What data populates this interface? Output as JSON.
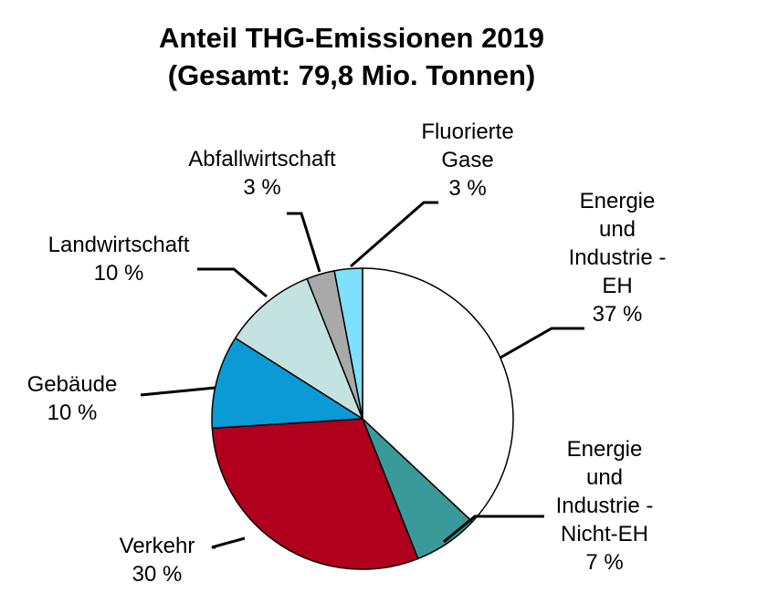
{
  "chart_data": {
    "type": "pie",
    "title": "Anteil THG-Emissionen 2019",
    "subtitle": "(Gesamt: 79,8 Mio. Tonnen)",
    "unit": "%",
    "slices": [
      {
        "name": "Energie und Industrie - EH",
        "label_lines": [
          "Energie",
          "und",
          "Industrie -",
          "EH"
        ],
        "value_text": "37 %",
        "value": 37,
        "color": "#ffffff"
      },
      {
        "name": "Energie und Industrie - Nicht-EH",
        "label_lines": [
          "Energie",
          "und",
          "Industrie -",
          "Nicht-EH"
        ],
        "value_text": "7 %",
        "value": 7,
        "color": "#3a9a9a"
      },
      {
        "name": "Verkehr",
        "label_lines": [
          "Verkehr"
        ],
        "value_text": "30 %",
        "value": 30,
        "color": "#b0001e"
      },
      {
        "name": "Gebäude",
        "label_lines": [
          "Gebäude"
        ],
        "value_text": "10 %",
        "value": 10,
        "color": "#0a9ad6"
      },
      {
        "name": "Landwirtschaft",
        "label_lines": [
          "Landwirtschaft"
        ],
        "value_text": "10 %",
        "value": 10,
        "color": "#c4e2e0"
      },
      {
        "name": "Abfallwirtschaft",
        "label_lines": [
          "Abfallwirtschaft"
        ],
        "value_text": "3 %",
        "value": 3,
        "color": "#a9a9a9"
      },
      {
        "name": "Fluorierte Gase",
        "label_lines": [
          "Fluorierte",
          "Gase"
        ],
        "value_text": "3 %",
        "value": 3,
        "color": "#7ee0fb"
      }
    ]
  }
}
